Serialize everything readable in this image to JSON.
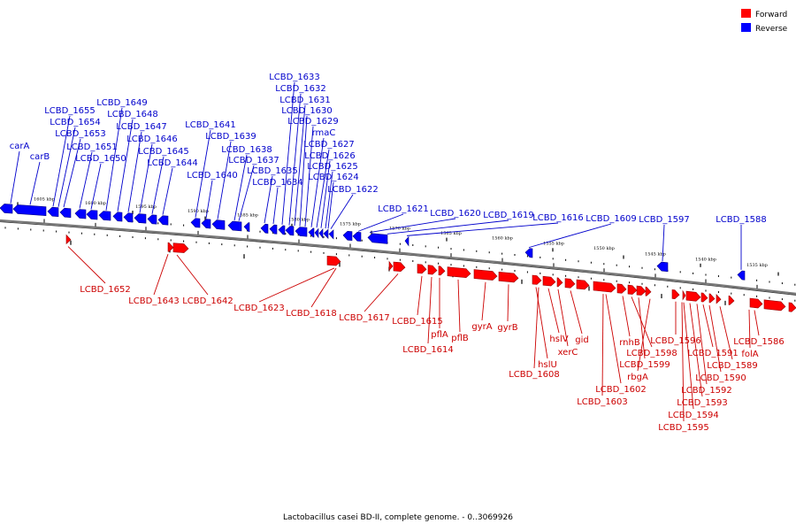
{
  "title": "Lactobacillus casei BD-II, complete genome. - 0..3069926",
  "colors": {
    "forward": "#ff0000",
    "reverse": "#0000ff",
    "forward_text": "#cc0000",
    "reverse_text": "#0000cc",
    "backbone": "#777777"
  },
  "legend": [
    {
      "label": "Forward",
      "color": "#ff0000"
    },
    {
      "label": "Reverse",
      "color": "#0000ff"
    }
  ],
  "ticks": [
    "1605 kbp",
    "1600 kbp",
    "1595 kbp",
    "1590 kbp",
    "1585 kbp",
    "1580 kbp",
    "1575 kbp",
    "1570 kbp",
    "1565 kbp",
    "1560 kbp",
    "1555 kbp",
    "1550 kbp",
    "1545 kbp",
    "1540 kbp",
    "1535 kbp"
  ],
  "reverse_labels": [
    "carA",
    "carB",
    "LCBD_1655",
    "LCBD_1654",
    "LCBD_1653",
    "LCBD_1651",
    "LCBD_1650",
    "LCBD_1649",
    "LCBD_1648",
    "LCBD_1647",
    "LCBD_1646",
    "LCBD_1645",
    "LCBD_1644",
    "LCBD_1641",
    "LCBD_1640",
    "LCBD_1639",
    "LCBD_1638",
    "LCBD_1637",
    "LCBD_1635",
    "LCBD_1634",
    "LCBD_1633",
    "LCBD_1632",
    "LCBD_1631",
    "LCBD_1630",
    "LCBD_1629",
    "rmaC",
    "LCBD_1627",
    "LCBD_1626",
    "LCBD_1625",
    "LCBD_1624",
    "LCBD_1622",
    "LCBD_1621",
    "LCBD_1620",
    "LCBD_1619",
    "LCBD_1616",
    "LCBD_1609",
    "LCBD_1597",
    "LCBD_1588"
  ],
  "forward_labels": [
    "LCBD_1652",
    "LCBD_1643",
    "LCBD_1642",
    "LCBD_1623",
    "LCBD_1618",
    "LCBD_1617",
    "LCBD_1615",
    "LCBD_1614",
    "pflA",
    "pflB",
    "gyrA",
    "gyrB",
    "hslU",
    "LCBD_1608",
    "hslV",
    "xerC",
    "gid",
    "LCBD_1603",
    "LCBD_1602",
    "rnhB",
    "LCBD_1598",
    "LCBD_1599",
    "rbgA",
    "LCBD_1596",
    "LCBD_1595",
    "LCBD_1594",
    "LCBD_1593",
    "LCBD_1592",
    "LCBD_1591",
    "LCBD_1590",
    "LCBD_1589",
    "LCBD_1586",
    "folA"
  ]
}
